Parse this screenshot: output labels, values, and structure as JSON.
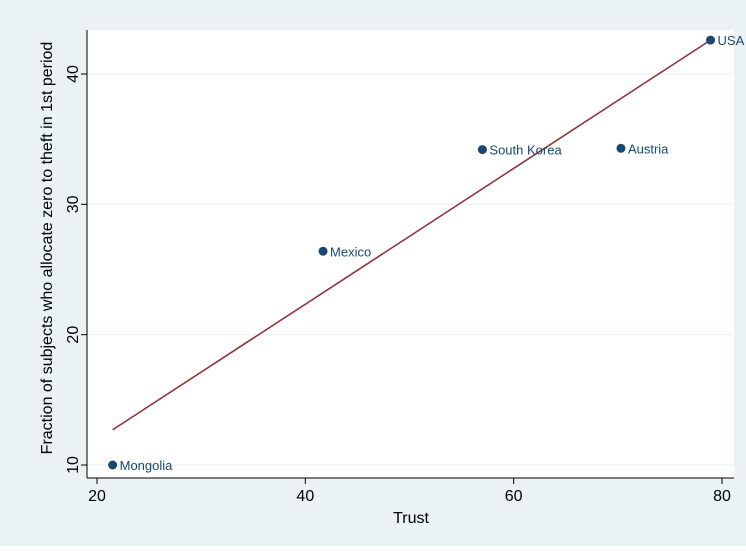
{
  "chart_data": {
    "type": "scatter",
    "title": "",
    "xlabel": "Trust",
    "ylabel": "Fraction of subjects who allocate zero to theft in 1st period",
    "xlim": [
      20,
      80
    ],
    "ylim": [
      10,
      43
    ],
    "x_ticks": [
      20,
      40,
      60,
      80
    ],
    "y_ticks": [
      10,
      20,
      30,
      40
    ],
    "grid": true,
    "points": [
      {
        "label": "Mongolia",
        "x": 21.5,
        "y": 10.0
      },
      {
        "label": "Mexico",
        "x": 41.7,
        "y": 26.4
      },
      {
        "label": "South Korea",
        "x": 57.0,
        "y": 34.2
      },
      {
        "label": "Austria",
        "x": 70.3,
        "y": 34.3
      },
      {
        "label": "USA",
        "x": 78.9,
        "y": 42.6
      }
    ],
    "fit_line": {
      "x": [
        21.5,
        78.9
      ],
      "y": [
        12.7,
        42.6
      ]
    },
    "colors": {
      "background": "#eaf2f3",
      "plot_background": "#ffffff",
      "grid": "#eaf2f3",
      "marker": "#1a476f",
      "fit_line": "#90353b",
      "text": "#000000",
      "marker_label": "#1a476f"
    }
  }
}
